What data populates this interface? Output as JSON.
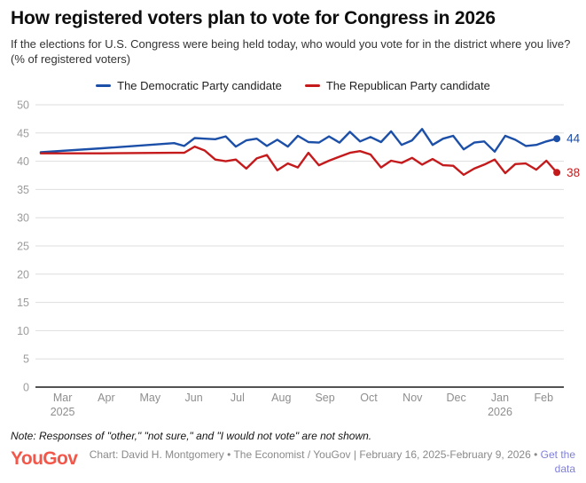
{
  "header": {
    "title": "How registered voters plan to vote for Congress in 2026",
    "subtitle": "If the elections for U.S. Congress were being held today, who would you vote for in the district where you live? (% of registered voters)"
  },
  "legend": [
    {
      "label": "The Democratic Party candidate",
      "color": "#1c4fa8"
    },
    {
      "label": "The Republican Party candidate",
      "color": "#c41a1c"
    }
  ],
  "chart_data": {
    "type": "line",
    "title": "How registered voters plan to vote for Congress in 2026",
    "ylabel": "% of registered voters",
    "ylim": [
      0,
      50
    ],
    "yticks": [
      0,
      5,
      10,
      15,
      20,
      25,
      30,
      35,
      40,
      45,
      50
    ],
    "grid": true,
    "legend_position": "top",
    "x_range": [
      -0.62,
      11.46
    ],
    "x_unit": "months (0 = Mar 2025 tick)",
    "x_ticks": [
      {
        "label": "Mar",
        "year": "2025",
        "pos": 0
      },
      {
        "label": "Apr",
        "pos": 1
      },
      {
        "label": "May",
        "pos": 2
      },
      {
        "label": "Jun",
        "pos": 3
      },
      {
        "label": "Jul",
        "pos": 4
      },
      {
        "label": "Aug",
        "pos": 5
      },
      {
        "label": "Sep",
        "pos": 6
      },
      {
        "label": "Oct",
        "pos": 7
      },
      {
        "label": "Nov",
        "pos": 8
      },
      {
        "label": "Dec",
        "pos": 9
      },
      {
        "label": "Jan",
        "year": "2026",
        "pos": 10
      },
      {
        "label": "Feb",
        "pos": 11
      }
    ],
    "x": [
      -0.5,
      0.9,
      2.55,
      2.78,
      3.02,
      3.25,
      3.49,
      3.73,
      3.96,
      4.2,
      4.44,
      4.67,
      4.91,
      5.15,
      5.38,
      5.62,
      5.86,
      6.09,
      6.33,
      6.57,
      6.8,
      7.04,
      7.28,
      7.51,
      7.75,
      7.99,
      8.22,
      8.46,
      8.7,
      8.93,
      9.17,
      9.41,
      9.64,
      9.88,
      10.12,
      10.35,
      10.59,
      10.83,
      11.06,
      11.3
    ],
    "series": [
      {
        "name": "The Democratic Party candidate",
        "slug": "democratic-line",
        "color": "#1c4fa8",
        "end_label": "44",
        "values": [
          41.6,
          42.3,
          43.2,
          42.7,
          44.1,
          44.0,
          43.9,
          44.4,
          42.6,
          43.7,
          44.0,
          42.7,
          43.8,
          42.6,
          44.5,
          43.4,
          43.3,
          44.4,
          43.3,
          45.2,
          43.5,
          44.3,
          43.4,
          45.3,
          42.9,
          43.7,
          45.7,
          42.9,
          44.0,
          44.5,
          42.1,
          43.3,
          43.5,
          41.7,
          44.5,
          43.8,
          42.7,
          42.9,
          43.5,
          44.0
        ]
      },
      {
        "name": "The Republican Party candidate",
        "slug": "republican-line",
        "color": "#c41a1c",
        "end_label": "38",
        "values": [
          41.4,
          41.4,
          41.5,
          41.5,
          42.6,
          41.9,
          40.3,
          40.0,
          40.3,
          38.7,
          40.5,
          41.1,
          38.4,
          39.6,
          38.9,
          41.5,
          39.3,
          40.1,
          40.8,
          41.5,
          41.8,
          41.2,
          38.9,
          40.1,
          39.7,
          40.6,
          39.4,
          40.4,
          39.3,
          39.2,
          37.6,
          38.7,
          39.4,
          40.3,
          37.9,
          39.5,
          39.6,
          38.5,
          40.1,
          38.0
        ]
      }
    ],
    "colors": {
      "gridline": "#dedede",
      "axis_line": "#1a1a1a",
      "tick_label": "#9c9c9c",
      "x_tick_label": "#8e8e8e"
    }
  },
  "footer": {
    "note": "Note: Responses of \"other,\" \"not sure,\" and \"I would not vote\" are not shown.",
    "logo": "YouGov",
    "credit": "Chart: David H. Montgomery • The Economist / YouGov | February 16, 2025-February 9, 2026 • ",
    "link": "Get the data"
  }
}
